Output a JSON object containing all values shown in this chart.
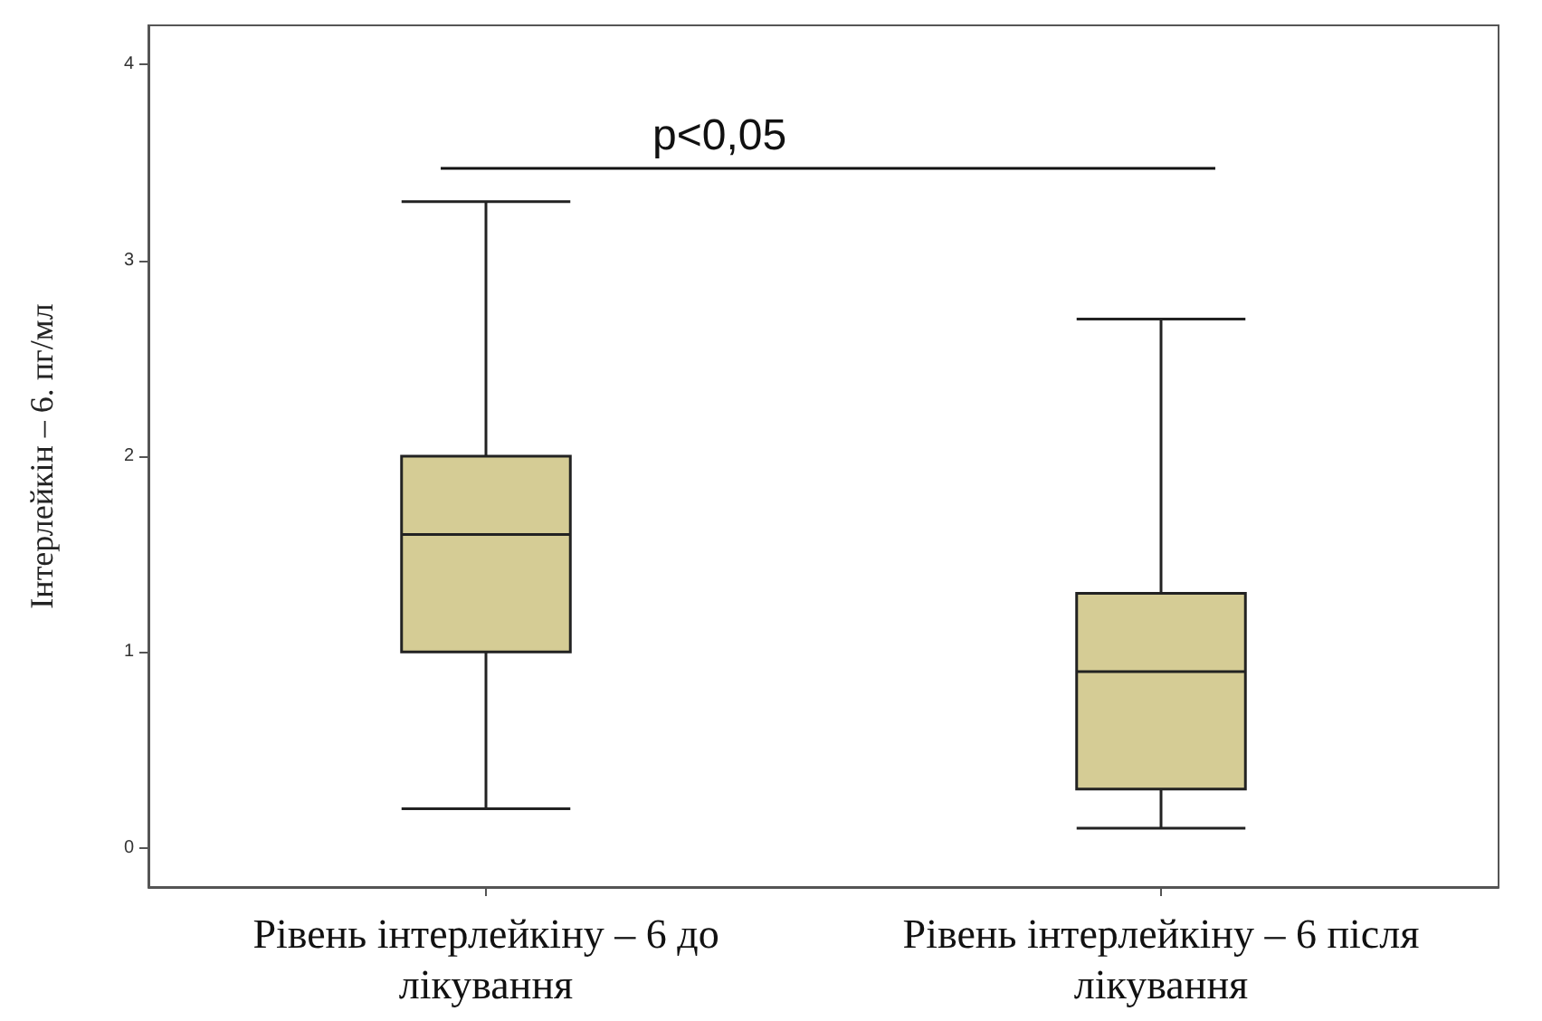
{
  "chart_data": {
    "type": "box",
    "ylabel": "Інтерлейкін – 6. пг/мл",
    "categories": [
      "Рівень інтерлейкіну – 6 до лікування",
      "Рівень інтерлейкіну – 6 після лікування"
    ],
    "boxes": [
      {
        "low": 0.2,
        "q1": 1.0,
        "median": 1.6,
        "q3": 2.0,
        "high": 3.3
      },
      {
        "low": 0.1,
        "q1": 0.3,
        "median": 0.9,
        "q3": 1.3,
        "high": 2.7
      }
    ],
    "color": "#d5cc95",
    "ylim": [
      -0.2,
      4.2
    ],
    "yticks": [
      0,
      1,
      2,
      3,
      4
    ],
    "annotations": [
      "p<0,05"
    ]
  }
}
